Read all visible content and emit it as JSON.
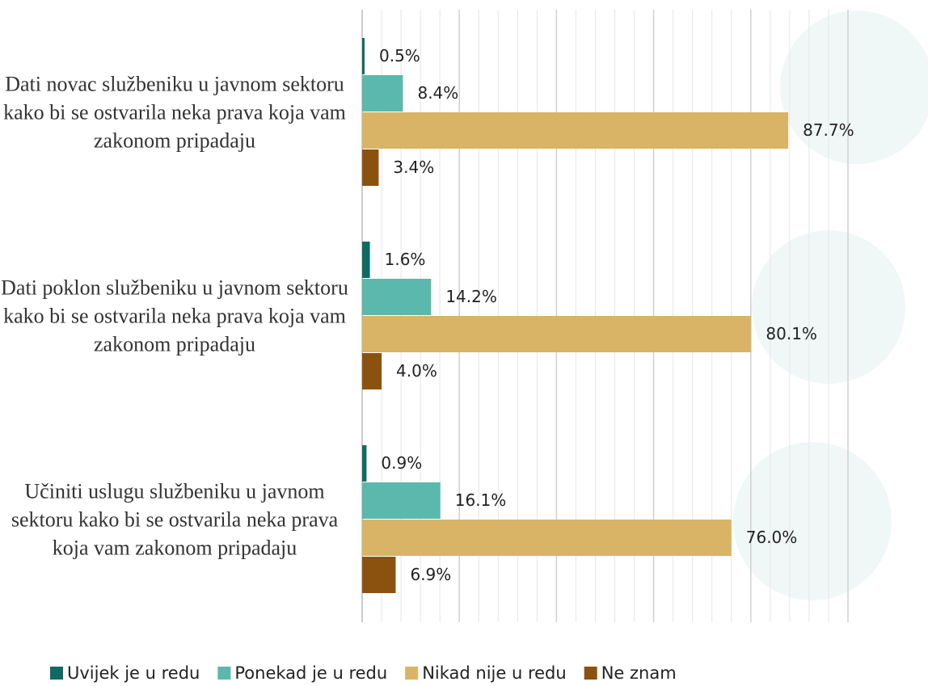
{
  "chart_data": {
    "type": "barh",
    "categories": [
      "Dati novac službeniku u javnom sektoru kako bi se ostvarila neka prava koja vam zakonom pripadaju",
      "Dati poklon službeniku u javnom sektoru kako bi se ostvarila neka prava koja vam zakonom pripadaju",
      "Učiniti uslugu službeniku u javnom sektoru kako bi se ostvarila neka prava koja vam zakonom pripadaju"
    ],
    "series": [
      {
        "name": "Uvijek je u redu",
        "color": "#0e6b61",
        "values": [
          0.5,
          1.6,
          0.9
        ],
        "value_labels": [
          "0.5%",
          "1.6%",
          "0.9%"
        ]
      },
      {
        "name": "Ponekad je u redu",
        "color": "#5bb8ad",
        "values": [
          8.4,
          14.2,
          16.1
        ],
        "value_labels": [
          "8.4%",
          "14.2%",
          "16.1%"
        ]
      },
      {
        "name": "Nikad nije u redu",
        "color": "#d9b467",
        "values": [
          87.7,
          80.1,
          76.0
        ],
        "value_labels": [
          "87.7%",
          "80.1%",
          "76.0%"
        ]
      },
      {
        "name": "Ne znam",
        "color": "#8b520f",
        "values": [
          3.4,
          4.0,
          6.9
        ],
        "value_labels": [
          "3.4%",
          "4.0%",
          "6.9%"
        ]
      }
    ],
    "xlim": [
      0,
      100
    ],
    "xticks": [
      0,
      20,
      40,
      60,
      80,
      100
    ],
    "minor_xticks": [
      4,
      8,
      12,
      16,
      24,
      28,
      32,
      36,
      44,
      48,
      52,
      56,
      64,
      68,
      72,
      76,
      84,
      88,
      92,
      96
    ],
    "grid": true,
    "legend": "bottom"
  }
}
